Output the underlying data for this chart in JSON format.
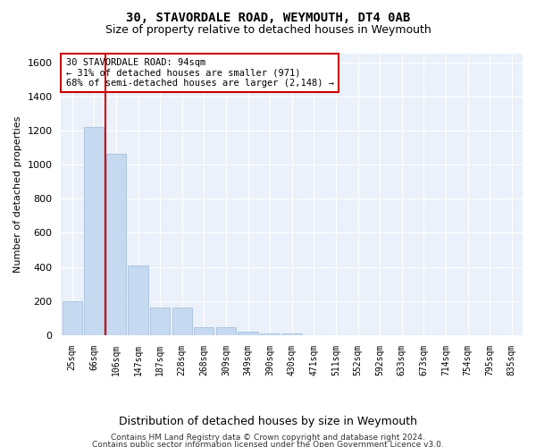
{
  "title1": "30, STAVORDALE ROAD, WEYMOUTH, DT4 0AB",
  "title2": "Size of property relative to detached houses in Weymouth",
  "xlabel": "Distribution of detached houses by size in Weymouth",
  "ylabel": "Number of detached properties",
  "bar_color": "#c5d9f0",
  "bar_edge_color": "#a0b8d8",
  "background_color": "#eaf1fa",
  "grid_color": "#ffffff",
  "vline_color": "#cc0000",
  "categories": [
    "25sqm",
    "66sqm",
    "106sqm",
    "147sqm",
    "187sqm",
    "228sqm",
    "268sqm",
    "309sqm",
    "349sqm",
    "390sqm",
    "430sqm",
    "471sqm",
    "511sqm",
    "552sqm",
    "592sqm",
    "633sqm",
    "673sqm",
    "714sqm",
    "754sqm",
    "795sqm",
    "835sqm"
  ],
  "values": [
    200,
    1220,
    1065,
    410,
    160,
    160,
    48,
    45,
    20,
    12,
    10,
    0,
    0,
    0,
    0,
    0,
    0,
    0,
    0,
    0,
    0
  ],
  "ylim": [
    0,
    1650
  ],
  "yticks": [
    0,
    200,
    400,
    600,
    800,
    1000,
    1200,
    1400,
    1600
  ],
  "annotation_text": "30 STAVORDALE ROAD: 94sqm\n← 31% of detached houses are smaller (971)\n68% of semi-detached houses are larger (2,148) →",
  "annotation_box_color": "#ffffff",
  "annotation_border_color": "#cc0000",
  "footer1": "Contains HM Land Registry data © Crown copyright and database right 2024.",
  "footer2": "Contains public sector information licensed under the Open Government Licence v3.0."
}
